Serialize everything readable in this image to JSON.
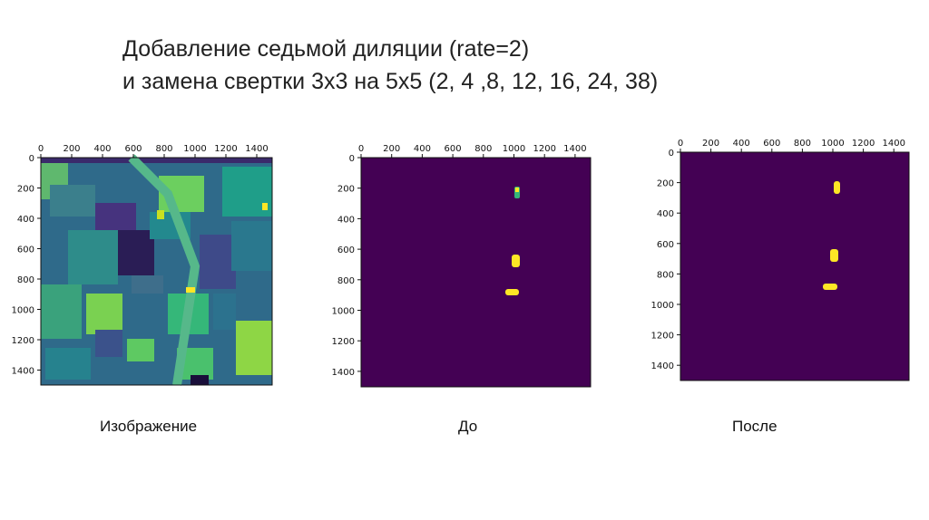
{
  "slide": {
    "title_line1": "Добавление седьмой диляции (rate=2)",
    "title_line2": "и замена свертки 3x3 на 5x5 (2, 4 ,8, 12, 16, 24, 38)"
  },
  "panels": [
    {
      "id": "image",
      "caption": "Изображение"
    },
    {
      "id": "before",
      "caption": "До"
    },
    {
      "id": "after",
      "caption": "После"
    }
  ],
  "axes": {
    "x_ticks": [
      "0",
      "200",
      "400",
      "600",
      "800",
      "1000",
      "1200",
      "1400"
    ],
    "y_ticks": [
      "0",
      "200",
      "400",
      "600",
      "800",
      "1000",
      "1200",
      "1400"
    ]
  },
  "colors": {
    "background_dark": "#440154",
    "detection_yellow": "#fde725",
    "aerial_green": "#35b779",
    "aerial_teal": "#21918c",
    "aerial_blue": "#3b528b"
  }
}
